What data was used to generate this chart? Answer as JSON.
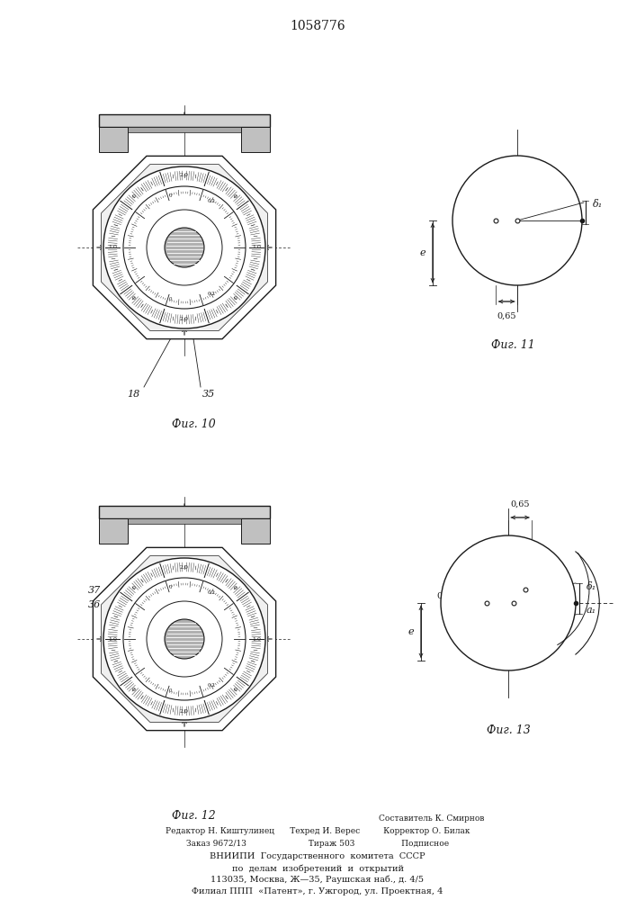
{
  "title": "1058776",
  "line_color": "#1a1a1a",
  "footnote_lines": [
    "Составитель К. Смирнов",
    "Редактор Н. Киштулинец      Техред И. Верес         Корректор О. Билак",
    "Заказ 9672/13                        Тираж 503                  Подписное",
    "ВНИИПИ  Государственного  комитета  СССР",
    "по  делам  изобретений  и  открытий",
    "113035, Москва, Ж—35, Раушская наб., д. 4/5",
    "Филиал ППП  «Патент», г. Ужгород, ул. Проектная, 4"
  ]
}
